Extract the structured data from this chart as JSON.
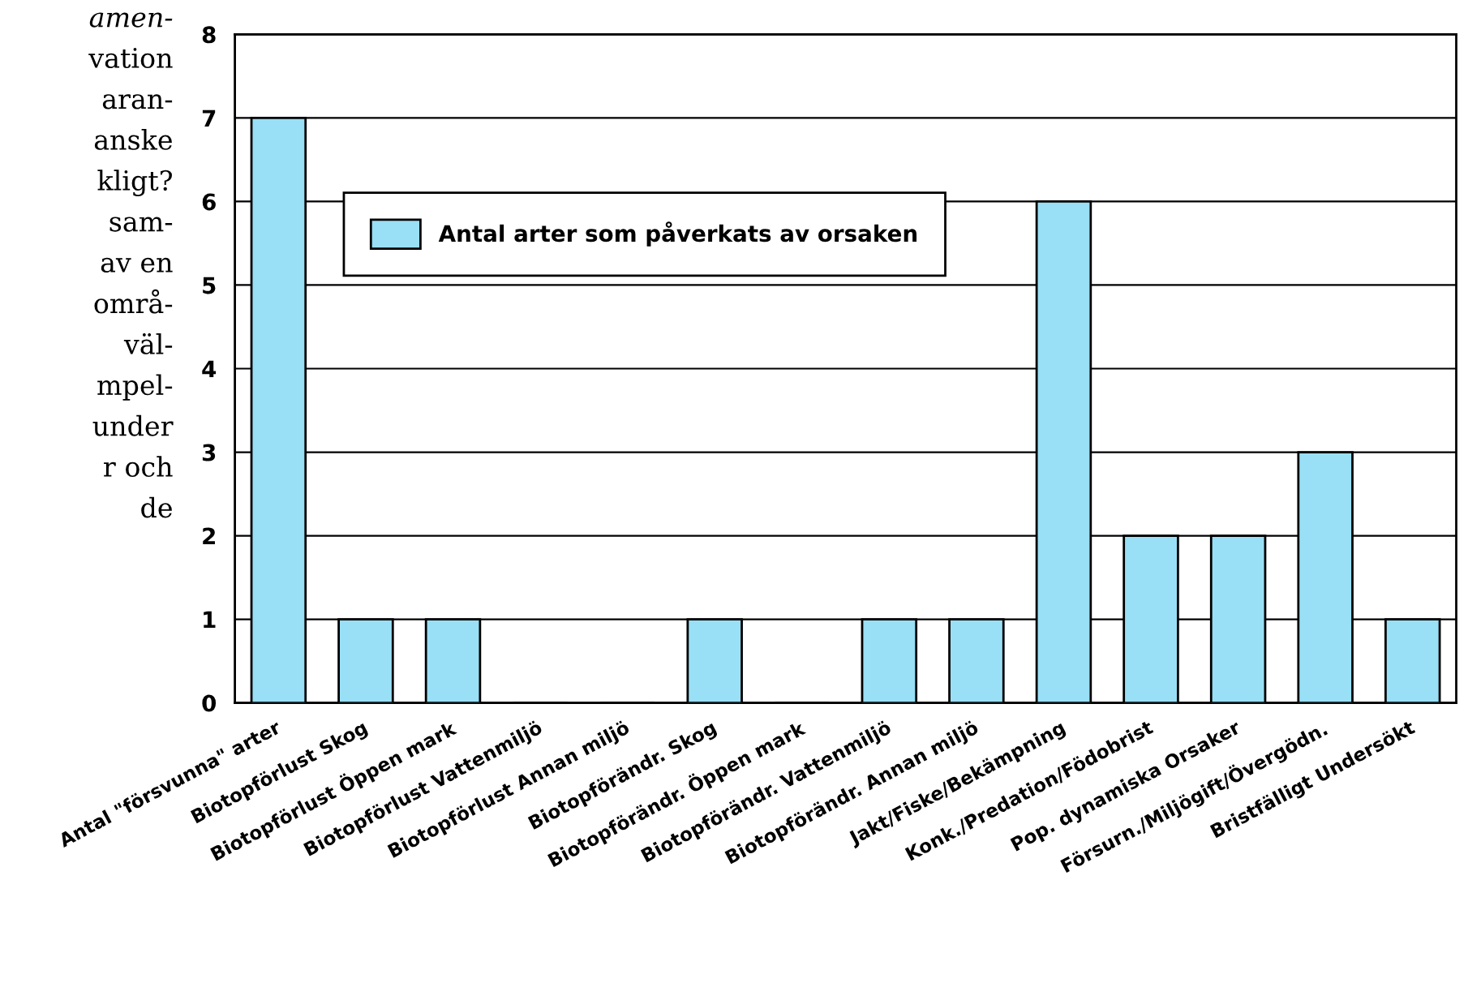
{
  "chart_data": {
    "type": "bar",
    "categories": [
      "Antal \"försvunna\" arter",
      "Biotopförlust Skog",
      "Biotopförlust Öppen mark",
      "Biotopförlust Vattenmiljö",
      "Biotopförlust Annan miljö",
      "Biotopförändr. Skog",
      "Biotopförändr. Öppen mark",
      "Biotopförändr. Vattenmiljö",
      "Biotopförändr. Annan miljö",
      "Jakt/Fiske/Bekämpning",
      "Konk./Predation/Födobrist",
      "Pop. dynamiska Orsaker",
      "Försurn./Miljögift/Övergödn.",
      "Bristfälligt Undersökt"
    ],
    "series": [
      {
        "name": "Antal arter som påverkats av orsaken",
        "color": "#99dff5",
        "values": [
          7,
          1,
          1,
          0,
          0,
          1,
          0,
          1,
          1,
          6,
          2,
          2,
          3,
          1
        ]
      }
    ],
    "ylim": [
      0,
      8
    ],
    "yticks": [
      0,
      1,
      2,
      3,
      4,
      5,
      6,
      7,
      8
    ],
    "grid": "y",
    "legend": "top left",
    "annotations": [
      "amen-",
      "vation",
      "aran-",
      "anske",
      "kligt?",
      "sam-",
      "av en",
      "områ-",
      "väl-",
      "mpel-",
      "under",
      "r och",
      "de"
    ]
  }
}
